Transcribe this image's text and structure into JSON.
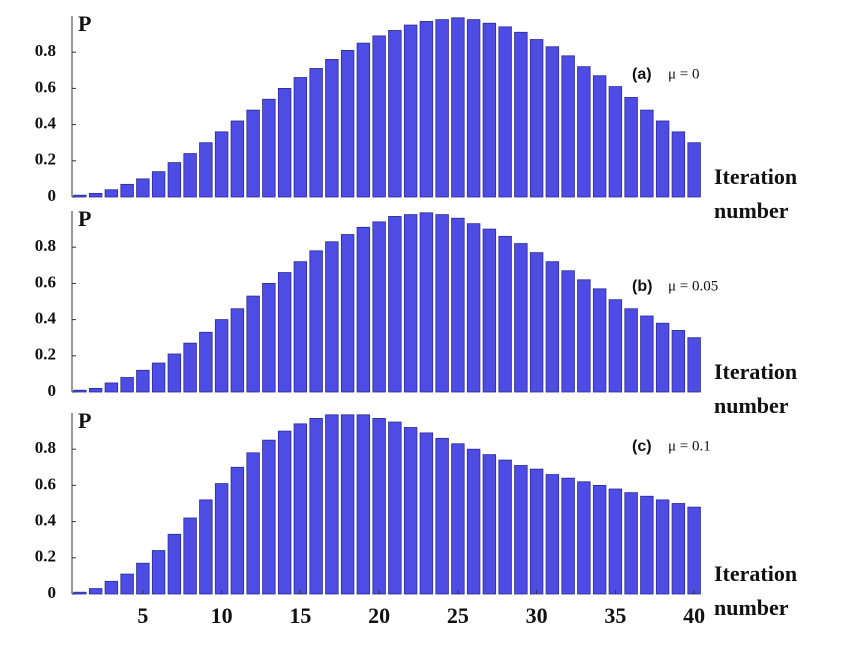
{
  "chart_data": [
    {
      "type": "bar",
      "ylabel": "P",
      "xlabel": "Iteration number",
      "annotations": [
        "(a)",
        "μ = 0"
      ],
      "x": [
        1,
        2,
        3,
        4,
        5,
        6,
        7,
        8,
        9,
        10,
        11,
        12,
        13,
        14,
        15,
        16,
        17,
        18,
        19,
        20,
        21,
        22,
        23,
        24,
        25,
        26,
        27,
        28,
        29,
        30,
        31,
        32,
        33,
        34,
        35,
        36,
        37,
        38,
        39,
        40
      ],
      "values": [
        0.01,
        0.02,
        0.04,
        0.07,
        0.1,
        0.14,
        0.19,
        0.24,
        0.3,
        0.36,
        0.42,
        0.48,
        0.54,
        0.6,
        0.66,
        0.71,
        0.76,
        0.81,
        0.85,
        0.89,
        0.92,
        0.95,
        0.97,
        0.98,
        0.99,
        0.98,
        0.96,
        0.94,
        0.91,
        0.87,
        0.83,
        0.78,
        0.72,
        0.67,
        0.61,
        0.55,
        0.48,
        0.42,
        0.36,
        0.3
      ],
      "color": "#4d4de6",
      "xlim": [
        0.5,
        40.5
      ],
      "ylim": [
        0,
        1
      ],
      "yticks": [
        0,
        0.2,
        0.4,
        0.6,
        0.8
      ]
    },
    {
      "type": "bar",
      "ylabel": "P",
      "xlabel": "Iteration number",
      "annotations": [
        "(b)",
        "μ = 0.05"
      ],
      "x": [
        1,
        2,
        3,
        4,
        5,
        6,
        7,
        8,
        9,
        10,
        11,
        12,
        13,
        14,
        15,
        16,
        17,
        18,
        19,
        20,
        21,
        22,
        23,
        24,
        25,
        26,
        27,
        28,
        29,
        30,
        31,
        32,
        33,
        34,
        35,
        36,
        37,
        38,
        39,
        40
      ],
      "values": [
        0.01,
        0.02,
        0.05,
        0.08,
        0.12,
        0.16,
        0.21,
        0.27,
        0.33,
        0.4,
        0.46,
        0.53,
        0.6,
        0.66,
        0.72,
        0.78,
        0.83,
        0.87,
        0.91,
        0.94,
        0.97,
        0.98,
        0.99,
        0.98,
        0.96,
        0.93,
        0.9,
        0.86,
        0.82,
        0.77,
        0.72,
        0.67,
        0.62,
        0.57,
        0.51,
        0.46,
        0.42,
        0.38,
        0.34,
        0.3
      ],
      "color": "#4d4de6",
      "xlim": [
        0.5,
        40.5
      ],
      "ylim": [
        0,
        1
      ],
      "yticks": [
        0,
        0.2,
        0.4,
        0.6,
        0.8
      ]
    },
    {
      "type": "bar",
      "ylabel": "P",
      "xlabel": "Iteration number",
      "annotations": [
        "(c)",
        "μ = 0.1"
      ],
      "x": [
        1,
        2,
        3,
        4,
        5,
        6,
        7,
        8,
        9,
        10,
        11,
        12,
        13,
        14,
        15,
        16,
        17,
        18,
        19,
        20,
        21,
        22,
        23,
        24,
        25,
        26,
        27,
        28,
        29,
        30,
        31,
        32,
        33,
        34,
        35,
        36,
        37,
        38,
        39,
        40
      ],
      "values": [
        0.01,
        0.03,
        0.07,
        0.11,
        0.17,
        0.24,
        0.33,
        0.42,
        0.52,
        0.61,
        0.7,
        0.78,
        0.85,
        0.9,
        0.94,
        0.97,
        0.99,
        0.99,
        0.99,
        0.97,
        0.95,
        0.92,
        0.89,
        0.86,
        0.83,
        0.8,
        0.77,
        0.74,
        0.71,
        0.69,
        0.66,
        0.64,
        0.62,
        0.6,
        0.58,
        0.56,
        0.54,
        0.52,
        0.5,
        0.48
      ],
      "color": "#4d4de6",
      "xlim": [
        0.5,
        40.5
      ],
      "ylim": [
        0,
        1
      ],
      "yticks": [
        0,
        0.2,
        0.4,
        0.6,
        0.8
      ],
      "xticks": [
        5,
        10,
        15,
        20,
        25,
        30,
        35,
        40
      ]
    }
  ]
}
